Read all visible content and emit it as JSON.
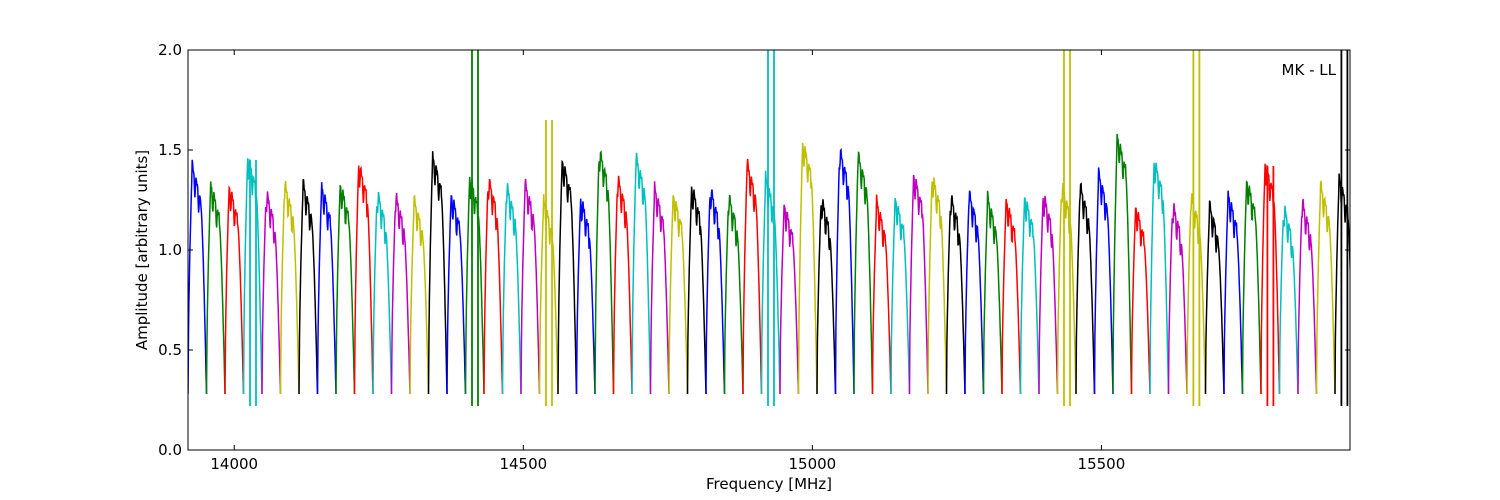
{
  "chart_data": {
    "type": "line",
    "title": "",
    "xlabel": "Frequency [MHz]",
    "ylabel": "Amplitude [arbitrary units]",
    "annotation": "MK - LL",
    "xlim": [
      13920,
      15930
    ],
    "ylim": [
      0.0,
      2.0
    ],
    "x_ticks": [
      14000,
      14500,
      15000,
      15500
    ],
    "y_ticks": [
      0.0,
      0.5,
      1.0,
      1.5,
      2.0
    ],
    "x_tick_labels": [
      "14000",
      "14500",
      "15000",
      "15500"
    ],
    "y_tick_labels": [
      "0.0",
      "0.5",
      "1.0",
      "1.5",
      "2.0"
    ],
    "grid": false,
    "colors": [
      "#0000ff",
      "#008000",
      "#ff0000",
      "#00bfbf",
      "#bf00bf",
      "#bfbf00",
      "#000000"
    ],
    "band_width_mhz": 32,
    "bands": [
      {
        "start": 13920,
        "peak": 1.4
      },
      {
        "start": 13952,
        "peak": 1.31
      },
      {
        "start": 13984,
        "peak": 1.3
      },
      {
        "start": 14016,
        "peak": 1.45,
        "spike": 1.45
      },
      {
        "start": 14048,
        "peak": 1.27
      },
      {
        "start": 14080,
        "peak": 1.31
      },
      {
        "start": 14112,
        "peak": 1.31
      },
      {
        "start": 14144,
        "peak": 1.3
      },
      {
        "start": 14176,
        "peak": 1.31
      },
      {
        "start": 14208,
        "peak": 1.41
      },
      {
        "start": 14240,
        "peak": 1.27
      },
      {
        "start": 14272,
        "peak": 1.25
      },
      {
        "start": 14304,
        "peak": 1.23
      },
      {
        "start": 14336,
        "peak": 1.45
      },
      {
        "start": 14368,
        "peak": 1.26
      },
      {
        "start": 14400,
        "peak": 1.35,
        "spike": 2.0
      },
      {
        "start": 14432,
        "peak": 1.34
      },
      {
        "start": 14464,
        "peak": 1.3
      },
      {
        "start": 14496,
        "peak": 1.31
      },
      {
        "start": 14528,
        "peak": 1.23,
        "spike": 1.65
      },
      {
        "start": 14560,
        "peak": 1.43
      },
      {
        "start": 14592,
        "peak": 1.24
      },
      {
        "start": 14624,
        "peak": 1.48
      },
      {
        "start": 14656,
        "peak": 1.34
      },
      {
        "start": 14688,
        "peak": 1.44
      },
      {
        "start": 14720,
        "peak": 1.29
      },
      {
        "start": 14752,
        "peak": 1.26
      },
      {
        "start": 14784,
        "peak": 1.3
      },
      {
        "start": 14816,
        "peak": 1.29
      },
      {
        "start": 14848,
        "peak": 1.25
      },
      {
        "start": 14880,
        "peak": 1.41
      },
      {
        "start": 14912,
        "peak": 1.34,
        "spike": 2.0
      },
      {
        "start": 14944,
        "peak": 1.21
      },
      {
        "start": 14976,
        "peak": 1.52
      },
      {
        "start": 15008,
        "peak": 1.24
      },
      {
        "start": 15040,
        "peak": 1.48
      },
      {
        "start": 15072,
        "peak": 1.45
      },
      {
        "start": 15104,
        "peak": 1.22
      },
      {
        "start": 15136,
        "peak": 1.24
      },
      {
        "start": 15168,
        "peak": 1.36
      },
      {
        "start": 15200,
        "peak": 1.35
      },
      {
        "start": 15232,
        "peak": 1.25
      },
      {
        "start": 15264,
        "peak": 1.26
      },
      {
        "start": 15296,
        "peak": 1.24
      },
      {
        "start": 15328,
        "peak": 1.23
      },
      {
        "start": 15360,
        "peak": 1.25
      },
      {
        "start": 15392,
        "peak": 1.26
      },
      {
        "start": 15424,
        "peak": 1.31,
        "spike": 2.0
      },
      {
        "start": 15456,
        "peak": 1.3
      },
      {
        "start": 15488,
        "peak": 1.36
      },
      {
        "start": 15520,
        "peak": 1.55
      },
      {
        "start": 15552,
        "peak": 1.2
      },
      {
        "start": 15584,
        "peak": 1.43
      },
      {
        "start": 15616,
        "peak": 1.21
      },
      {
        "start": 15648,
        "peak": 1.25,
        "spike": 2.0
      },
      {
        "start": 15680,
        "peak": 1.2
      },
      {
        "start": 15712,
        "peak": 1.26
      },
      {
        "start": 15744,
        "peak": 1.33
      },
      {
        "start": 15776,
        "peak": 1.42,
        "spike": 1.42
      },
      {
        "start": 15808,
        "peak": 1.2
      },
      {
        "start": 15840,
        "peak": 1.22
      },
      {
        "start": 15872,
        "peak": 1.3
      },
      {
        "start": 15904,
        "peak": 1.34,
        "spike": 2.0
      }
    ]
  }
}
